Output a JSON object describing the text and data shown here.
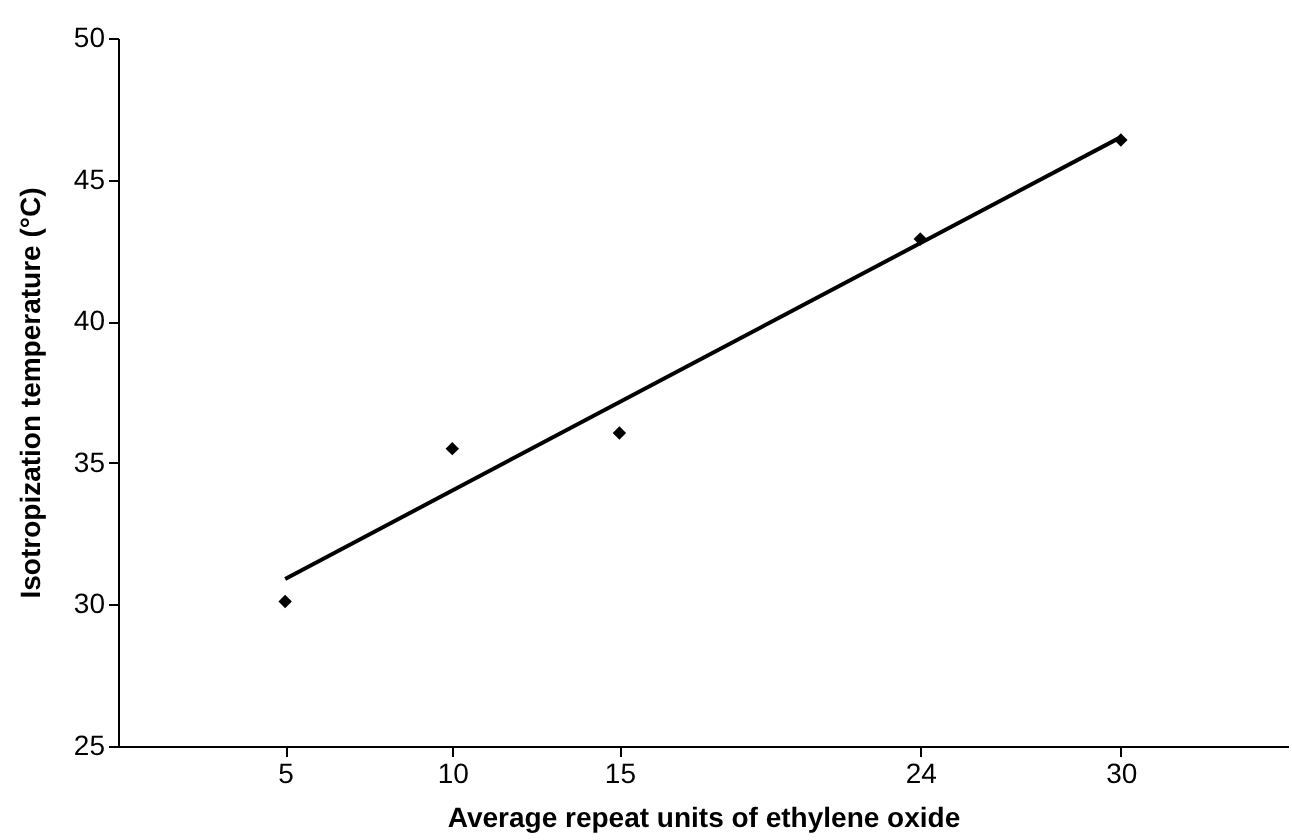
{
  "chart_data": {
    "type": "scatter",
    "xlabel": "Average repeat units of ethylene oxide",
    "ylabel": "Isotropization temperature (°C)",
    "x": [
      5,
      10,
      15,
      24,
      30
    ],
    "series": [
      {
        "color": "#000000",
        "marker": "diamond",
        "values": [
          30.1,
          35.5,
          36.05,
          42.9,
          46.4
        ]
      },
      {
        "type": "line",
        "color": "#000000",
        "x": [
          5,
          30
        ],
        "values": [
          30.9,
          46.5
        ],
        "line_style": "solid"
      }
    ],
    "xlim": [
      0,
      35
    ],
    "xticks": [
      5,
      10,
      15,
      24,
      30
    ],
    "ylim": [
      25,
      50
    ],
    "yticks": [
      25,
      30,
      35,
      40,
      45,
      50
    ],
    "grid": false
  }
}
